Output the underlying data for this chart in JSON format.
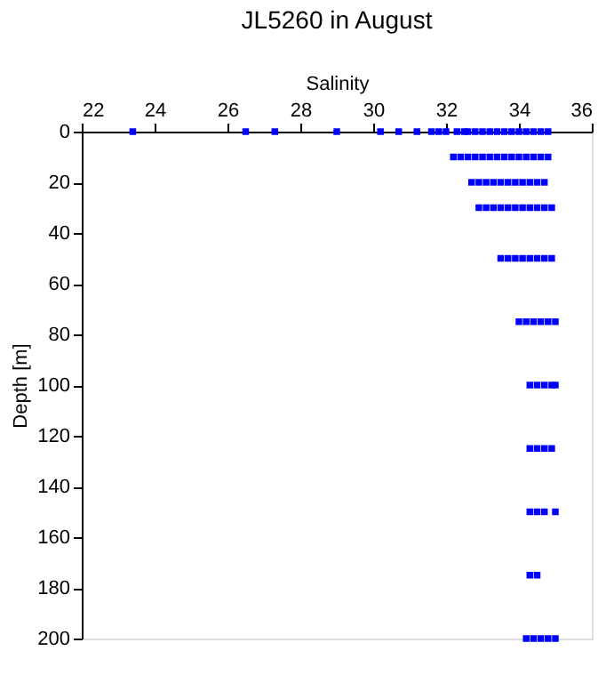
{
  "chart_data": {
    "type": "scatter",
    "title": "JL5260 in August",
    "xlabel": "Salinity",
    "ylabel": "Depth [m]",
    "x": [
      23.4,
      26.5,
      27.3,
      29.0,
      30.2,
      30.7,
      31.2,
      31.6,
      31.8,
      32.0,
      32.3,
      32.5,
      32.6,
      32.8,
      33.0,
      33.2,
      33.4,
      33.6,
      33.8,
      34.0,
      34.2,
      34.4,
      34.6,
      34.8,
      32.2,
      32.4,
      32.6,
      32.8,
      33.0,
      33.2,
      33.4,
      33.6,
      33.8,
      34.0,
      34.2,
      34.4,
      34.6,
      34.8,
      32.7,
      32.9,
      33.1,
      33.3,
      33.5,
      33.7,
      33.9,
      34.1,
      34.3,
      34.5,
      34.7,
      32.9,
      33.1,
      33.3,
      33.5,
      33.7,
      33.9,
      34.1,
      34.3,
      34.5,
      34.7,
      34.9,
      33.5,
      33.7,
      33.9,
      34.1,
      34.3,
      34.5,
      34.7,
      34.9,
      34.0,
      34.2,
      34.4,
      34.6,
      34.8,
      35.0,
      34.3,
      34.5,
      34.7,
      34.9,
      35.0,
      34.3,
      34.5,
      34.7,
      34.9,
      34.3,
      34.5,
      34.7,
      35.0,
      34.3,
      34.5,
      34.2,
      34.4,
      34.6,
      34.8,
      35.0
    ],
    "series": [
      {
        "color": "#0000ff",
        "values": [
          0,
          0,
          0,
          0,
          0,
          0,
          0,
          0,
          0,
          0,
          0,
          0,
          0,
          0,
          0,
          0,
          0,
          0,
          0,
          0,
          0,
          0,
          0,
          0,
          10,
          10,
          10,
          10,
          10,
          10,
          10,
          10,
          10,
          10,
          10,
          10,
          10,
          10,
          20,
          20,
          20,
          20,
          20,
          20,
          20,
          20,
          20,
          20,
          20,
          30,
          30,
          30,
          30,
          30,
          30,
          30,
          30,
          30,
          30,
          30,
          50,
          50,
          50,
          50,
          50,
          50,
          50,
          50,
          75,
          75,
          75,
          75,
          75,
          75,
          100,
          100,
          100,
          100,
          100,
          125,
          125,
          125,
          125,
          150,
          150,
          150,
          150,
          175,
          175,
          200,
          200,
          200,
          200,
          200
        ]
      }
    ],
    "xlim": [
      22,
      36
    ],
    "xticks": [
      22,
      24,
      26,
      28,
      30,
      32,
      34,
      36
    ],
    "ylim": [
      200,
      0
    ],
    "yticks": [
      0,
      20,
      40,
      60,
      80,
      100,
      120,
      140,
      160,
      180,
      200
    ],
    "marker": "square",
    "grid": false,
    "legend": false
  }
}
